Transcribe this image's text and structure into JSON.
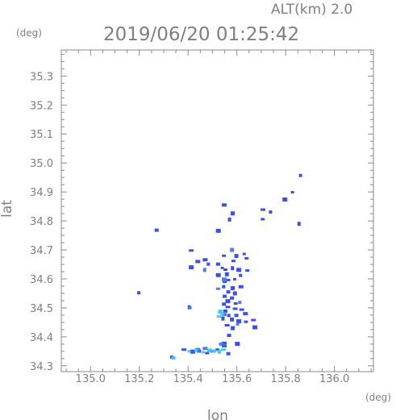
{
  "header": {
    "alt_label": "ALT(km) 2.0",
    "timestamp": "2019/06/20 01:25:42"
  },
  "chart_data": {
    "type": "scatter",
    "title": "2019/06/20 01:25:42",
    "xlabel": "lon",
    "ylabel": "lat",
    "x_unit": "(deg)",
    "y_unit": "(deg)",
    "xlim": [
      134.88,
      136.16
    ],
    "ylim": [
      34.28,
      35.39
    ],
    "x_ticks": [
      "135.0",
      "135.2",
      "135.4",
      "135.6",
      "135.8",
      "136.0"
    ],
    "y_ticks": [
      "34.3",
      "34.4",
      "34.5",
      "34.6",
      "34.7",
      "34.8",
      "34.9",
      "35.0",
      "35.1",
      "35.2",
      "35.3"
    ],
    "grid": false,
    "colors": {
      "dark": "#3b50e8",
      "mid": "#4a7ef0",
      "light": "#46c8ee",
      "frame": "#8a8a8a",
      "text": "#7f7f7f"
    },
    "series": [
      {
        "color": "#3b50e8",
        "points": [
          [
            135.271,
            34.768
          ],
          [
            135.198,
            34.552
          ],
          [
            135.405,
            34.502
          ],
          [
            135.861,
            34.957
          ],
          [
            135.828,
            34.899
          ],
          [
            135.797,
            34.874
          ],
          [
            135.855,
            34.79
          ],
          [
            135.738,
            34.831
          ],
          [
            135.706,
            34.806
          ],
          [
            135.57,
            34.805
          ],
          [
            135.524,
            34.766
          ],
          [
            135.548,
            34.855
          ],
          [
            135.47,
            34.666
          ],
          [
            135.44,
            34.66
          ],
          [
            135.413,
            34.64
          ],
          [
            135.413,
            34.698
          ],
          [
            135.483,
            34.651
          ],
          [
            135.523,
            34.651
          ],
          [
            135.54,
            34.638
          ],
          [
            135.547,
            34.68
          ],
          [
            135.586,
            34.662
          ],
          [
            135.598,
            34.679
          ],
          [
            135.63,
            34.686
          ],
          [
            135.64,
            34.671
          ],
          [
            135.608,
            34.631
          ],
          [
            135.582,
            34.637
          ],
          [
            135.553,
            34.632
          ],
          [
            135.615,
            34.612
          ],
          [
            135.643,
            34.629
          ],
          [
            135.524,
            34.613
          ],
          [
            135.559,
            34.616
          ],
          [
            135.591,
            34.599
          ],
          [
            135.55,
            34.59
          ],
          [
            135.563,
            34.596
          ],
          [
            135.583,
            34.568
          ],
          [
            135.546,
            34.573
          ],
          [
            135.617,
            34.573
          ],
          [
            135.565,
            34.555
          ],
          [
            135.592,
            34.55
          ],
          [
            135.55,
            34.54
          ],
          [
            135.58,
            34.534
          ],
          [
            135.563,
            34.523
          ],
          [
            135.595,
            34.515
          ],
          [
            135.547,
            34.513
          ],
          [
            135.563,
            34.503
          ],
          [
            135.593,
            34.497
          ],
          [
            135.553,
            34.489
          ],
          [
            135.62,
            34.494
          ],
          [
            135.635,
            34.48
          ],
          [
            135.598,
            34.474
          ],
          [
            135.567,
            34.474
          ],
          [
            135.543,
            34.463
          ],
          [
            135.58,
            34.46
          ],
          [
            135.608,
            34.454
          ],
          [
            135.637,
            34.452
          ],
          [
            135.668,
            34.458
          ],
          [
            135.56,
            34.44
          ],
          [
            135.583,
            34.43
          ],
          [
            135.674,
            34.433
          ],
          [
            135.568,
            34.405
          ],
          [
            135.548,
            34.378
          ],
          [
            135.548,
            34.368
          ],
          [
            135.383,
            34.356
          ],
          [
            135.419,
            34.349
          ],
          [
            135.445,
            34.351
          ],
          [
            135.478,
            34.344
          ],
          [
            135.498,
            34.35
          ],
          [
            135.52,
            34.356
          ],
          [
            135.333,
            34.33
          ],
          [
            135.565,
            34.342
          ],
          [
            135.602,
            34.376
          ],
          [
            135.707,
            34.839
          ],
          [
            135.583,
            34.826
          ]
        ]
      },
      {
        "color": "#4a7ef0",
        "points": [
          [
            135.408,
            34.5
          ],
          [
            135.468,
            34.631
          ],
          [
            135.58,
            34.7
          ],
          [
            135.612,
            34.519
          ],
          [
            135.603,
            34.443
          ],
          [
            135.44,
            34.355
          ],
          [
            135.47,
            34.36
          ],
          [
            135.535,
            34.375
          ],
          [
            135.548,
            34.477
          ],
          [
            135.548,
            34.598
          ],
          [
            135.523,
            34.566
          ]
        ]
      },
      {
        "color": "#46c8ee",
        "points": [
          [
            135.533,
            34.487
          ],
          [
            135.54,
            34.476
          ],
          [
            135.527,
            34.47
          ],
          [
            135.405,
            34.35
          ],
          [
            135.432,
            34.354
          ],
          [
            135.462,
            34.347
          ],
          [
            135.488,
            34.354
          ],
          [
            135.508,
            34.351
          ],
          [
            135.528,
            34.349
          ],
          [
            135.545,
            34.356
          ],
          [
            135.34,
            34.327
          ]
        ]
      }
    ]
  }
}
